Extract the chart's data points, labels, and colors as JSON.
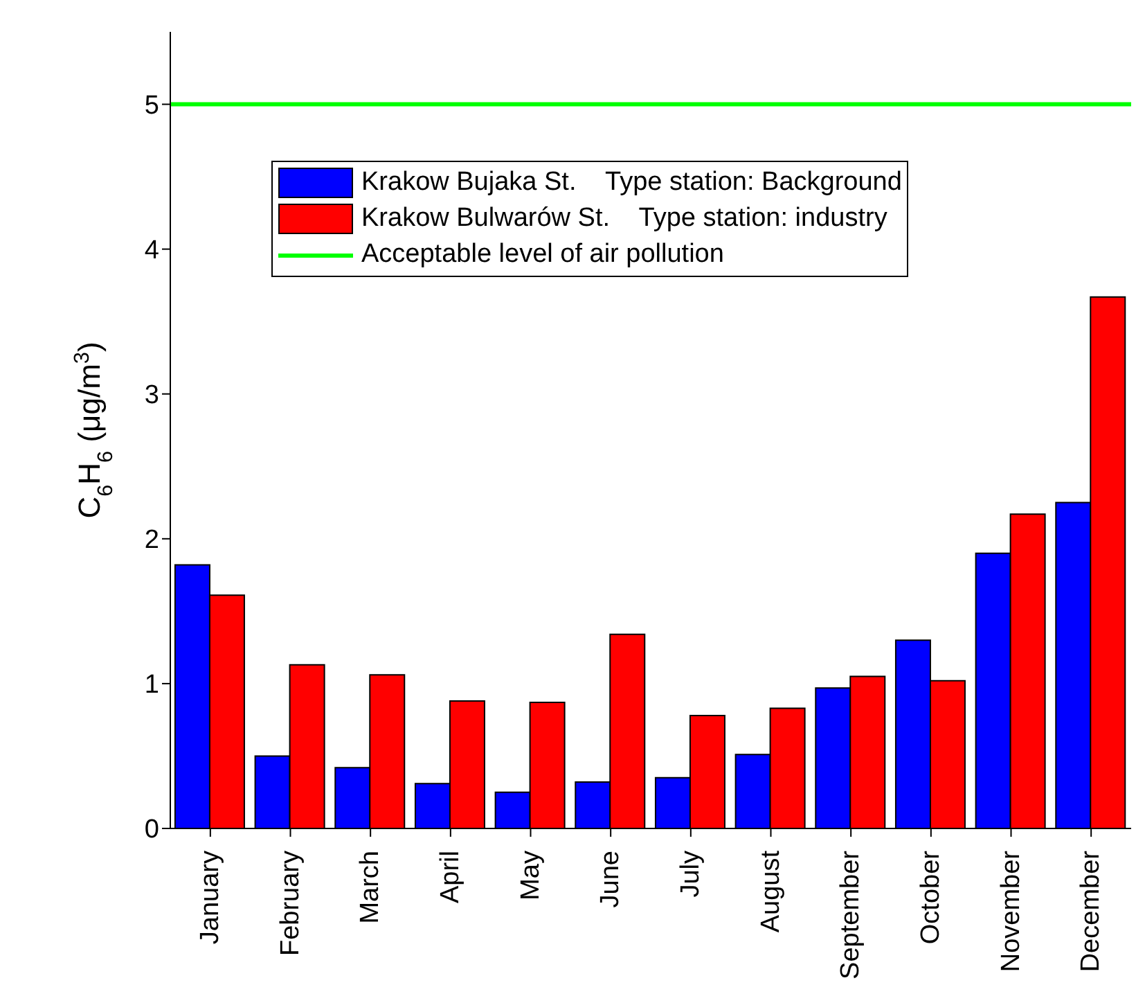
{
  "chart_data": {
    "type": "bar",
    "ylabel": "C$_{6}$H$_{6}$ (μg/m$^{3}$)",
    "categories": [
      "January",
      "February",
      "March",
      "April",
      "May",
      "June",
      "July",
      "August",
      "September",
      "October",
      "November",
      "December"
    ],
    "series": [
      {
        "name": "Krakow Bujaka St.    Type station: Background",
        "color": "#0000ff",
        "values": [
          1.82,
          0.5,
          0.42,
          0.31,
          0.25,
          0.32,
          0.35,
          0.51,
          0.97,
          1.3,
          1.9,
          2.25
        ]
      },
      {
        "name": "Krakow Bulwarów St.    Type station: industry",
        "color": "#ff0000",
        "values": [
          1.61,
          1.13,
          1.06,
          0.88,
          0.87,
          1.34,
          0.78,
          0.83,
          1.05,
          1.02,
          2.17,
          3.67
        ]
      }
    ],
    "ref_lines": [
      {
        "axis": "y",
        "value": 5,
        "label": "Acceptable level of air pollution",
        "color": "#00ff00"
      }
    ],
    "ylim": [
      0,
      5.5
    ],
    "yticks": [
      0,
      1,
      2,
      3,
      4,
      5
    ],
    "grid": false,
    "legend": "top"
  }
}
